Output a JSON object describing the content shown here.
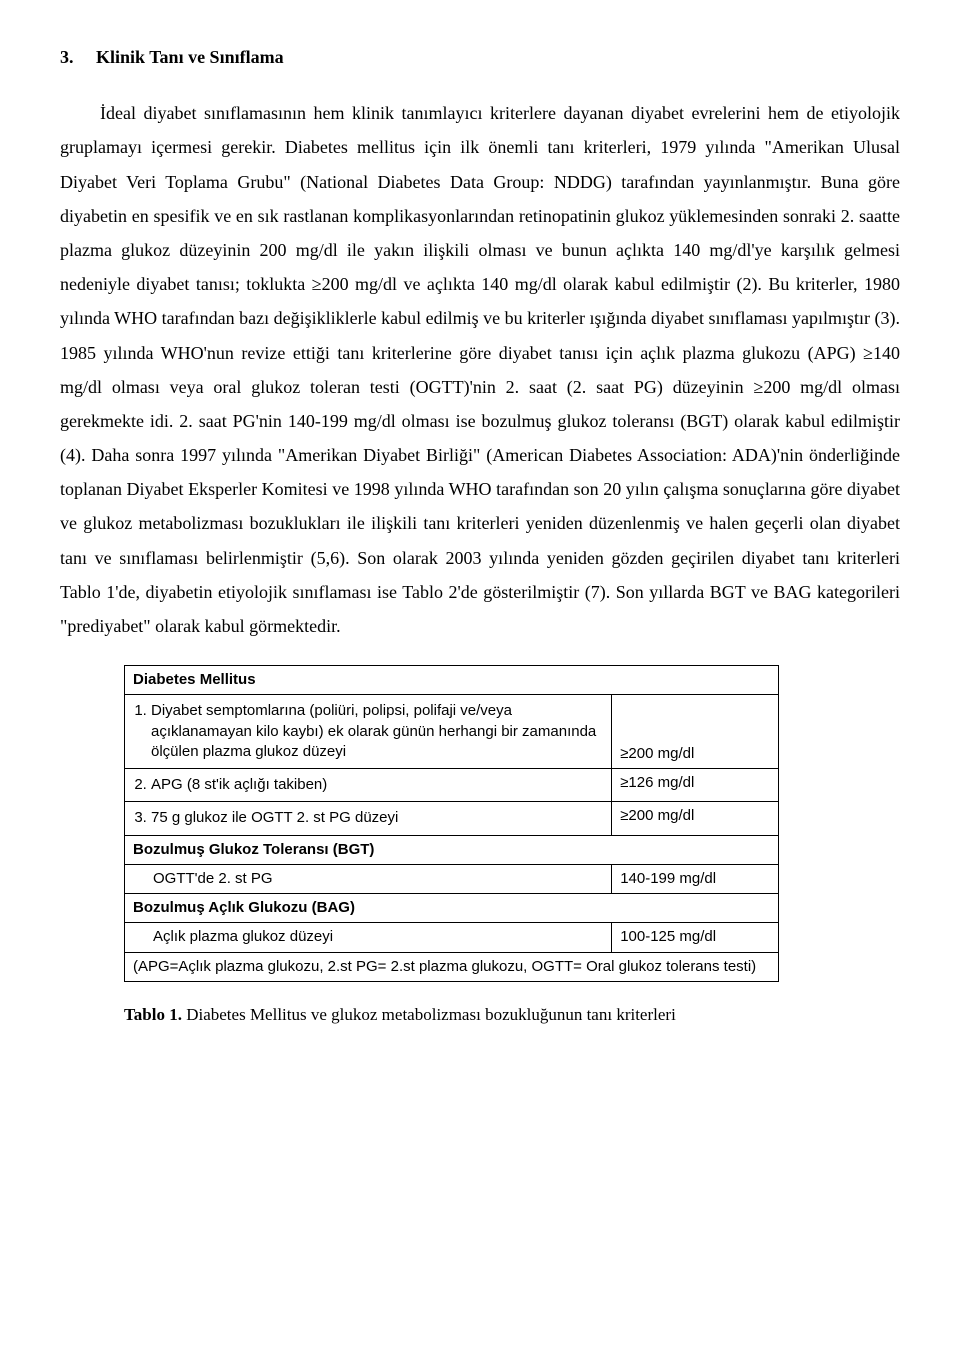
{
  "section": {
    "number": "3.",
    "title": "Klinik Tanı ve Sınıflama"
  },
  "paragraph": "İdeal diyabet sınıflamasının hem klinik tanımlayıcı kriterlere dayanan diyabet evrelerini hem de etiyolojik gruplamayı içermesi gerekir. Diabetes mellitus için ilk önemli tanı kriterleri, 1979 yılında \"Amerikan Ulusal Diyabet Veri Toplama Grubu\" (National Diabetes Data Group: NDDG) tarafından yayınlanmıştır. Buna göre diyabetin en spesifik ve en sık rastlanan komplikasyonlarından retinopatinin glukoz yüklemesinden sonraki 2. saatte plazma glukoz düzeyinin 200 mg/dl ile yakın ilişkili olması ve bunun açlıkta 140 mg/dl'ye karşılık gelmesi nedeniyle diyabet tanısı; toklukta ≥200 mg/dl ve açlıkta 140 mg/dl olarak kabul edilmiştir (2). Bu kriterler, 1980 yılında WHO tarafından bazı değişikliklerle kabul edilmiş ve bu kriterler ışığında diyabet sınıflaması yapılmıştır (3). 1985 yılında WHO'nun revize ettiği tanı kriterlerine göre diyabet tanısı için açlık plazma glukozu (APG) ≥140 mg/dl olması veya oral glukoz toleran testi (OGTT)'nin 2. saat (2. saat PG) düzeyinin ≥200 mg/dl olması gerekmekte idi. 2. saat PG'nin 140-199 mg/dl olması ise bozulmuş glukoz toleransı (BGT) olarak kabul edilmiştir (4). Daha sonra 1997 yılında \"Amerikan Diyabet Birliği\" (American Diabetes Association: ADA)'nin önderliğinde toplanan Diyabet Eksperler Komitesi ve 1998 yılında WHO tarafından son 20 yılın çalışma sonuçlarına göre diyabet ve glukoz metabolizması bozuklukları ile ilişkili tanı kriterleri yeniden düzenlenmiş ve halen geçerli olan diyabet tanı ve sınıflaması belirlenmiştir (5,6). Son olarak 2003 yılında yeniden gözden geçirilen diyabet tanı kriterleri Tablo 1'de, diyabetin etiyolojik sınıflaması ise Tablo 2'de gösterilmiştir (7). Son yıllarda BGT ve BAG kategorileri \"prediyabet\" olarak kabul görmektedir.",
  "table": {
    "header": "Diabetes Mellitus",
    "item1_text": "Diyabet semptomlarına (poliüri, polipsi, polifaji ve/veya açıklanamayan kilo kaybı) ek olarak günün herhangi bir zamanında ölçülen plazma glukoz düzeyi",
    "item1_val": "≥200 mg/dl",
    "item2_text": "APG (8 st'ik açlığı takiben)",
    "item2_val": "≥126 mg/dl",
    "item3_text": "75 g glukoz ile OGTT 2. st PG düzeyi",
    "item3_val": "≥200 mg/dl",
    "bgt_header": "Bozulmuş Glukoz Toleransı (BGT)",
    "bgt_text": "OGTT'de 2. st PG",
    "bgt_val": "140-199 mg/dl",
    "bag_header": "Bozulmuş Açlık Glukozu (BAG)",
    "bag_text": "Açlık plazma glukoz düzeyi",
    "bag_val": "100-125 mg/dl",
    "footer": "(APG=Açlık plazma glukozu, 2.st PG= 2.st plazma glukozu, OGTT= Oral glukoz tolerans testi)"
  },
  "caption": {
    "label": "Tablo 1.",
    "text": " Diabetes Mellitus ve glukoz metabolizması bozukluğunun tanı kriterleri"
  }
}
